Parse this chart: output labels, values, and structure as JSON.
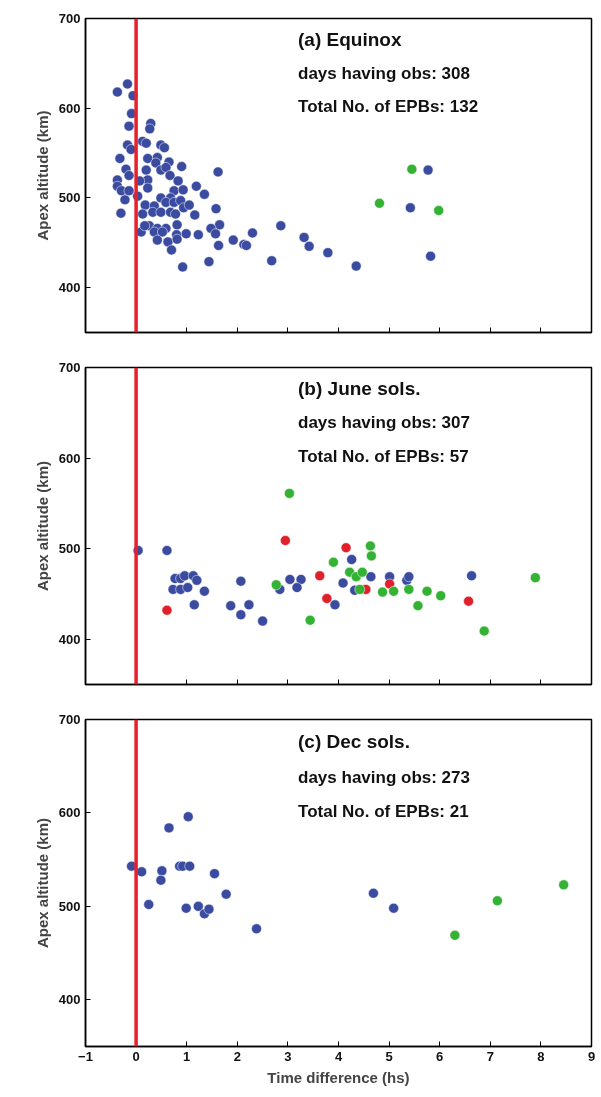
{
  "chart_data": [
    {
      "type": "scatter",
      "ylabel": "Apex altitude (km)",
      "annotations": [
        "(a) Equinox",
        "days having obs: 308",
        "Total No. of EPBs: 132"
      ],
      "xlim": [
        -1,
        9
      ],
      "xticks": [
        -1,
        0,
        1,
        2,
        3,
        4,
        5,
        6,
        7,
        8,
        9
      ],
      "ylim": [
        350,
        700
      ],
      "yticks": [
        400,
        500,
        600,
        700
      ],
      "tick_labels": "y",
      "grid": false,
      "marker": "circle",
      "ref_lines": [
        {
          "axis": "x",
          "value": 0,
          "color": "#e8202a"
        }
      ],
      "series": [
        {
          "color": "#3a4ba0",
          "x": [
            -0.37,
            -0.17,
            -0.06,
            -0.09,
            -0.14,
            0.29,
            0.27,
            -0.17,
            -0.1,
            0.13,
            0.2,
            0.49,
            0.56,
            -0.32,
            0.23,
            0.42,
            0.39,
            0.65,
            0.9,
            -0.2,
            -0.14,
            -0.37,
            -0.37,
            0.2,
            0.23,
            0.49,
            0.59,
            0.67,
            0.83,
            1.62,
            -0.22,
            -0.29,
            -0.14,
            0.03,
            0.23,
            0.07,
            0.75,
            0.68,
            0.93,
            1.19,
            1.35,
            -0.3,
            0.18,
            0.36,
            0.49,
            0.59,
            0.75,
            0.88,
            0.94,
            1.05,
            0.13,
            0.33,
            0.49,
            0.68,
            0.78,
            1.16,
            1.58,
            1.65,
            0.1,
            0.26,
            0.42,
            0.59,
            0.81,
            0.17,
            0.36,
            0.52,
            0.42,
            0.63,
            0.7,
            0.8,
            0.81,
            0.99,
            1.23,
            1.48,
            1.57,
            1.63,
            1.92,
            2.13,
            2.18,
            2.3,
            2.86,
            0.92,
            1.44,
            2.68,
            3.32,
            3.42,
            3.79,
            4.35,
            5.82,
            5.42,
            5.77
          ],
          "values": [
            618,
            627,
            614,
            594,
            580,
            583,
            577,
            559,
            554,
            563,
            561,
            559,
            556,
            544,
            544,
            545,
            539,
            540,
            535,
            532,
            525,
            520,
            513,
            531,
            520,
            531,
            534,
            525,
            519,
            529,
            498,
            508,
            508,
            502,
            511,
            519,
            508,
            500,
            509,
            513,
            504,
            483,
            492,
            491,
            500,
            495,
            495,
            497,
            489,
            492,
            482,
            484,
            484,
            484,
            482,
            481,
            488,
            470,
            462,
            469,
            466,
            466,
            470,
            469,
            462,
            462,
            453,
            451,
            442,
            459,
            454,
            460,
            459,
            466,
            460,
            447,
            453,
            448,
            447,
            461,
            469,
            423,
            429,
            430,
            456,
            446,
            439,
            424,
            435,
            489,
            531
          ]
        },
        {
          "color": "#33b233",
          "x": [
            5.45,
            4.81,
            5.98
          ],
          "values": [
            532,
            494,
            486
          ]
        }
      ]
    },
    {
      "type": "scatter",
      "ylabel": "Apex altitude (km)",
      "annotations": [
        "(b) June sols.",
        "days having obs: 307",
        "Total No. of EPBs: 57"
      ],
      "xlim": [
        -1,
        9
      ],
      "xticks": [
        -1,
        0,
        1,
        2,
        3,
        4,
        5,
        6,
        7,
        8,
        9
      ],
      "ylim": [
        350,
        700
      ],
      "yticks": [
        400,
        500,
        600,
        700
      ],
      "tick_labels": "y",
      "grid": false,
      "marker": "circle",
      "ref_lines": [
        {
          "axis": "x",
          "value": 0,
          "color": "#e8202a"
        }
      ],
      "series": [
        {
          "color": "#3a4ba0",
          "x": [
            0.04,
            0.61,
            0.77,
            0.88,
            0.96,
            1.13,
            1.2,
            0.73,
            0.88,
            1.02,
            1.35,
            1.15,
            1.87,
            2.07,
            2.07,
            2.23,
            2.5,
            2.84,
            3.04,
            3.26,
            3.18,
            3.93,
            4.09,
            4.26,
            4.32,
            4.64,
            5.01,
            5.35,
            5.39,
            6.63
          ],
          "values": [
            498,
            498,
            467,
            467,
            470,
            470,
            465,
            455,
            455,
            457,
            453,
            438,
            437,
            464,
            427,
            438,
            420,
            455,
            466,
            466,
            457,
            438,
            462,
            488,
            454,
            469,
            469,
            465,
            469,
            470
          ]
        },
        {
          "color": "#e0202a",
          "x": [
            0.61,
            2.95,
            3.63,
            3.77,
            4.15,
            4.54,
            5.01,
            6.57
          ],
          "values": [
            432,
            509,
            470,
            445,
            501,
            455,
            461,
            442
          ]
        },
        {
          "color": "#33b233",
          "x": [
            3.03,
            2.77,
            3.44,
            3.9,
            4.22,
            4.35,
            4.47,
            4.42,
            4.63,
            4.65,
            4.87,
            5.09,
            5.39,
            5.57,
            5.75,
            6.02,
            6.88,
            7.89
          ],
          "values": [
            561,
            460,
            421,
            485,
            474,
            469,
            474,
            455,
            503,
            492,
            452,
            453,
            455,
            437,
            453,
            448,
            409,
            468
          ]
        }
      ]
    },
    {
      "type": "scatter",
      "xlabel": "Time difference (hs)",
      "ylabel": "Apex altitude (km)",
      "annotations": [
        "(c) Dec sols.",
        "days having obs: 273",
        "Total No. of EPBs: 21"
      ],
      "xlim": [
        -1,
        9
      ],
      "xticks": [
        -1,
        0,
        1,
        2,
        3,
        4,
        5,
        6,
        7,
        8,
        9
      ],
      "ylim": [
        350,
        700
      ],
      "yticks": [
        400,
        500,
        600,
        700
      ],
      "grid": false,
      "marker": "circle",
      "ref_lines": [
        {
          "axis": "x",
          "value": 0,
          "color": "#e8202a"
        }
      ],
      "series": [
        {
          "color": "#3a4ba0",
          "x": [
            -0.09,
            0.11,
            0.25,
            0.51,
            0.49,
            0.65,
            0.86,
            0.92,
            1.06,
            1.03,
            0.99,
            1.23,
            1.35,
            1.44,
            1.55,
            1.78,
            2.38,
            4.69,
            5.09
          ],
          "values": [
            543,
            537,
            502,
            538,
            528,
            584,
            543,
            543,
            543,
            596,
            498,
            500,
            492,
            497,
            535,
            513,
            476,
            514,
            498
          ]
        },
        {
          "color": "#33b233",
          "x": [
            6.3,
            7.14,
            8.45
          ],
          "values": [
            469,
            506,
            523
          ]
        }
      ]
    }
  ]
}
